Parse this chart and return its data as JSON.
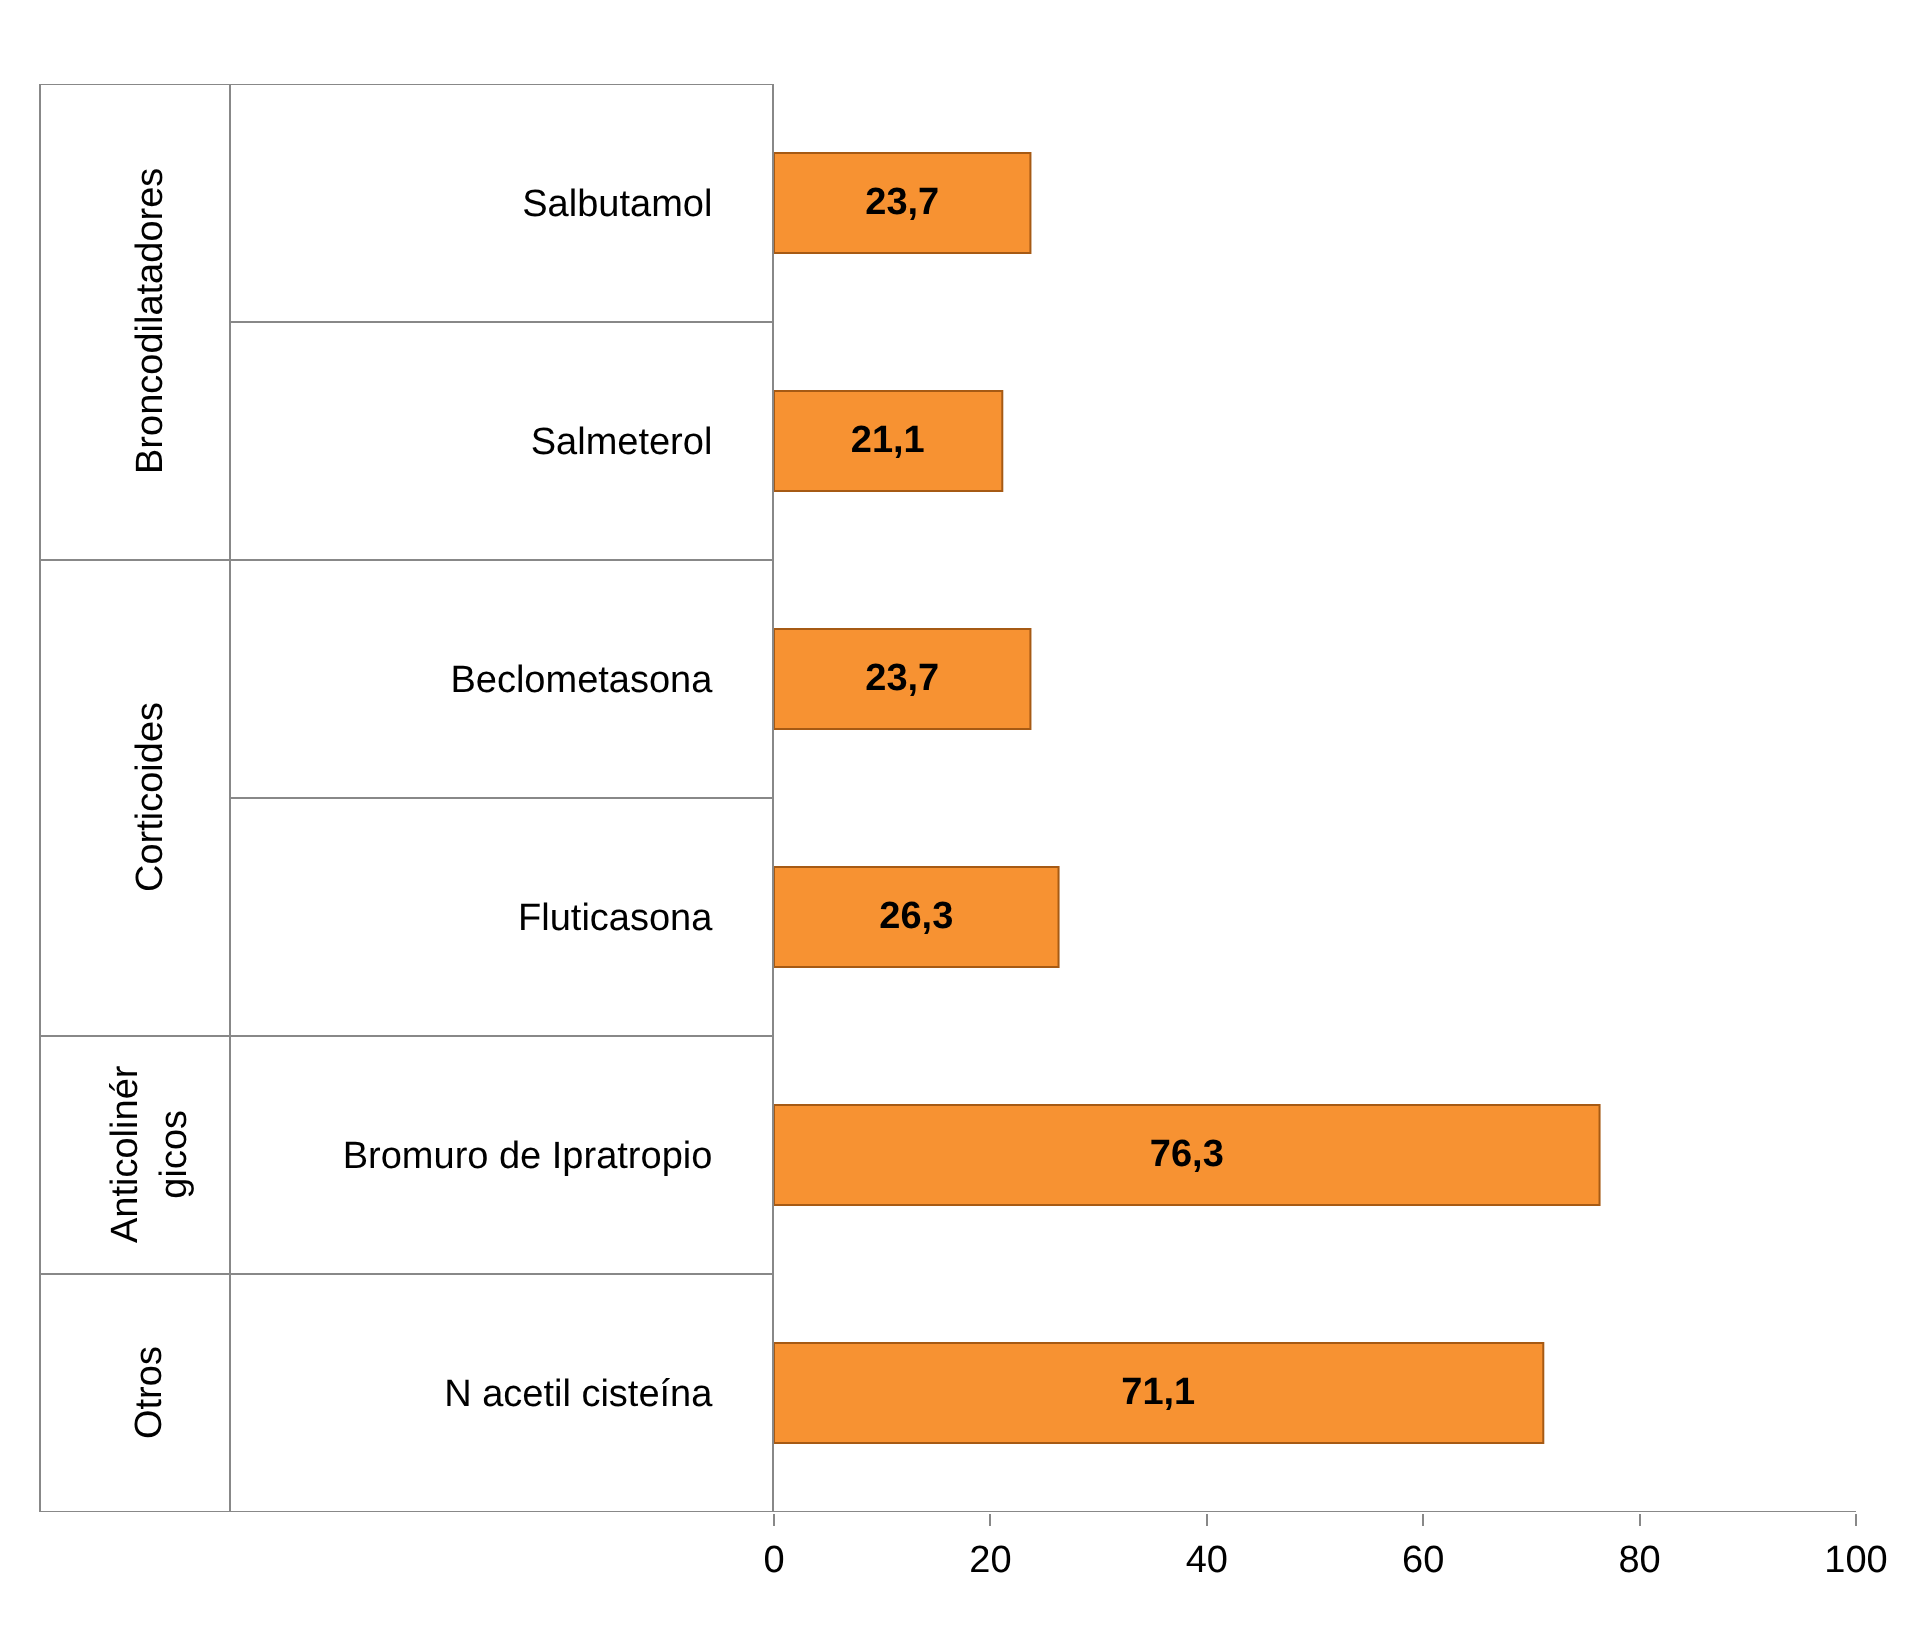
{
  "chart_data": {
    "type": "bar",
    "orientation": "horizontal",
    "categories": [
      "Salbutamol",
      "Salmeterol",
      "Beclometasona",
      "Fluticasona",
      "Bromuro de Ipratropio",
      "N acetil cisteína"
    ],
    "values": [
      23.7,
      21.1,
      23.7,
      26.3,
      76.3,
      71.1
    ],
    "value_labels": [
      "23,7",
      "21,1",
      "23,7",
      "26,3",
      "76,3",
      "71,1"
    ],
    "color": "#f79232",
    "xlim": [
      0,
      100
    ],
    "xticks": [
      0,
      20,
      40,
      60,
      80,
      100
    ],
    "grid": false,
    "legend": false,
    "annotations": [
      "Broncodilatadores",
      "Corticoides",
      "Anticolinér\ngicos",
      "Otros"
    ]
  }
}
